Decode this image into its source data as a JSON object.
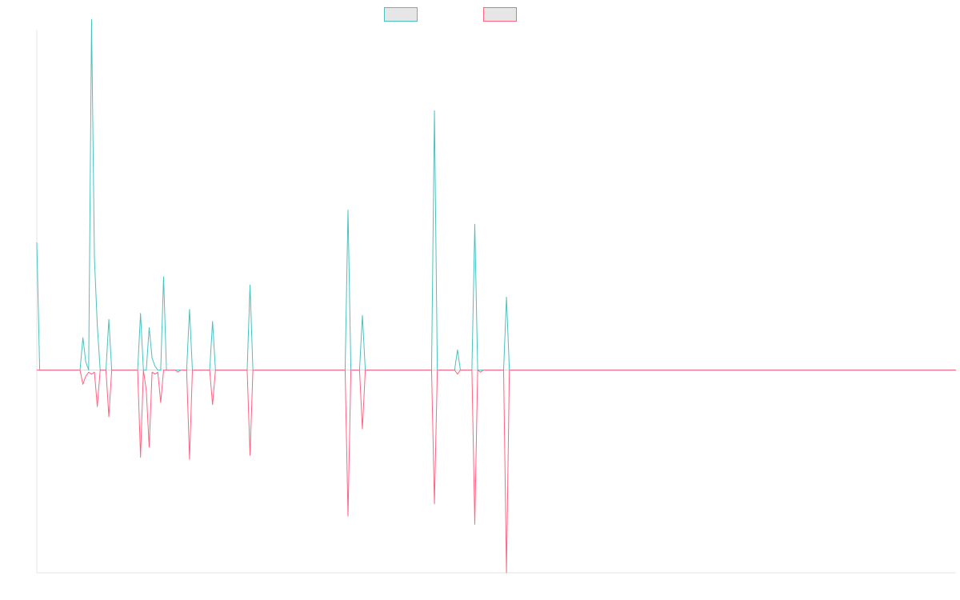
{
  "chart_data": {
    "type": "line",
    "title": "",
    "xlabel": "",
    "ylabel": "",
    "x_count": 320,
    "ylim": [
      -100,
      168
    ],
    "grid": false,
    "legend": "top",
    "series": [
      {
        "name": "",
        "color": "#4bc0c0",
        "fill": "#e6e6e6",
        "points": [
          [
            0,
            63
          ],
          [
            1,
            0
          ],
          [
            15,
            0
          ],
          [
            16,
            16
          ],
          [
            17,
            4
          ],
          [
            18,
            0
          ],
          [
            19,
            173
          ],
          [
            20,
            55
          ],
          [
            21,
            22
          ],
          [
            22,
            0
          ],
          [
            24,
            0
          ],
          [
            25,
            25
          ],
          [
            26,
            0
          ],
          [
            35,
            0
          ],
          [
            36,
            28
          ],
          [
            37,
            0
          ],
          [
            38,
            0
          ],
          [
            39,
            21
          ],
          [
            40,
            6
          ],
          [
            41,
            2
          ],
          [
            42,
            0
          ],
          [
            43,
            0
          ],
          [
            44,
            46
          ],
          [
            45,
            0
          ],
          [
            52,
            0
          ],
          [
            53,
            30
          ],
          [
            54,
            0
          ],
          [
            60,
            0
          ],
          [
            61,
            24
          ],
          [
            62,
            0
          ],
          [
            67,
            0
          ],
          [
            68,
            0
          ],
          [
            73,
            0
          ],
          [
            74,
            42
          ],
          [
            75,
            0
          ],
          [
            107,
            0
          ],
          [
            108,
            79
          ],
          [
            109,
            0
          ],
          [
            112,
            0
          ],
          [
            113,
            27
          ],
          [
            114,
            0
          ],
          [
            137,
            0
          ],
          [
            138,
            128
          ],
          [
            139,
            0
          ],
          [
            145,
            0
          ],
          [
            146,
            10
          ],
          [
            147,
            0
          ],
          [
            151,
            0
          ],
          [
            152,
            72
          ],
          [
            153,
            0
          ],
          [
            162,
            0
          ],
          [
            163,
            36
          ],
          [
            164,
            0
          ],
          [
            319,
            0
          ]
        ]
      },
      {
        "name": "",
        "color": "#ff6384",
        "fill": "#e6e6e6",
        "points": [
          [
            0,
            0
          ],
          [
            15,
            0
          ],
          [
            16,
            -7
          ],
          [
            17,
            -3
          ],
          [
            18,
            -1
          ],
          [
            19,
            -2
          ],
          [
            20,
            -1
          ],
          [
            21,
            -18
          ],
          [
            22,
            0
          ],
          [
            24,
            0
          ],
          [
            25,
            -23
          ],
          [
            26,
            0
          ],
          [
            35,
            0
          ],
          [
            36,
            -43
          ],
          [
            37,
            0
          ],
          [
            38,
            -10
          ],
          [
            39,
            -38
          ],
          [
            40,
            -1
          ],
          [
            41,
            -2
          ],
          [
            42,
            -1
          ],
          [
            43,
            -16
          ],
          [
            44,
            0
          ],
          [
            48,
            0
          ],
          [
            49,
            -1
          ],
          [
            50,
            0
          ],
          [
            52,
            0
          ],
          [
            53,
            -44
          ],
          [
            54,
            0
          ],
          [
            60,
            0
          ],
          [
            61,
            -17
          ],
          [
            62,
            0
          ],
          [
            67,
            0
          ],
          [
            68,
            0
          ],
          [
            73,
            0
          ],
          [
            74,
            -42
          ],
          [
            75,
            0
          ],
          [
            107,
            0
          ],
          [
            108,
            -72
          ],
          [
            109,
            0
          ],
          [
            112,
            0
          ],
          [
            113,
            -29
          ],
          [
            114,
            0
          ],
          [
            137,
            0
          ],
          [
            138,
            -66
          ],
          [
            139,
            0
          ],
          [
            145,
            0
          ],
          [
            146,
            -2
          ],
          [
            147,
            0
          ],
          [
            151,
            0
          ],
          [
            152,
            -76
          ],
          [
            153,
            0
          ],
          [
            154,
            -1
          ],
          [
            155,
            0
          ],
          [
            162,
            0
          ],
          [
            163,
            -100
          ],
          [
            164,
            0
          ],
          [
            319,
            0
          ]
        ]
      }
    ]
  }
}
